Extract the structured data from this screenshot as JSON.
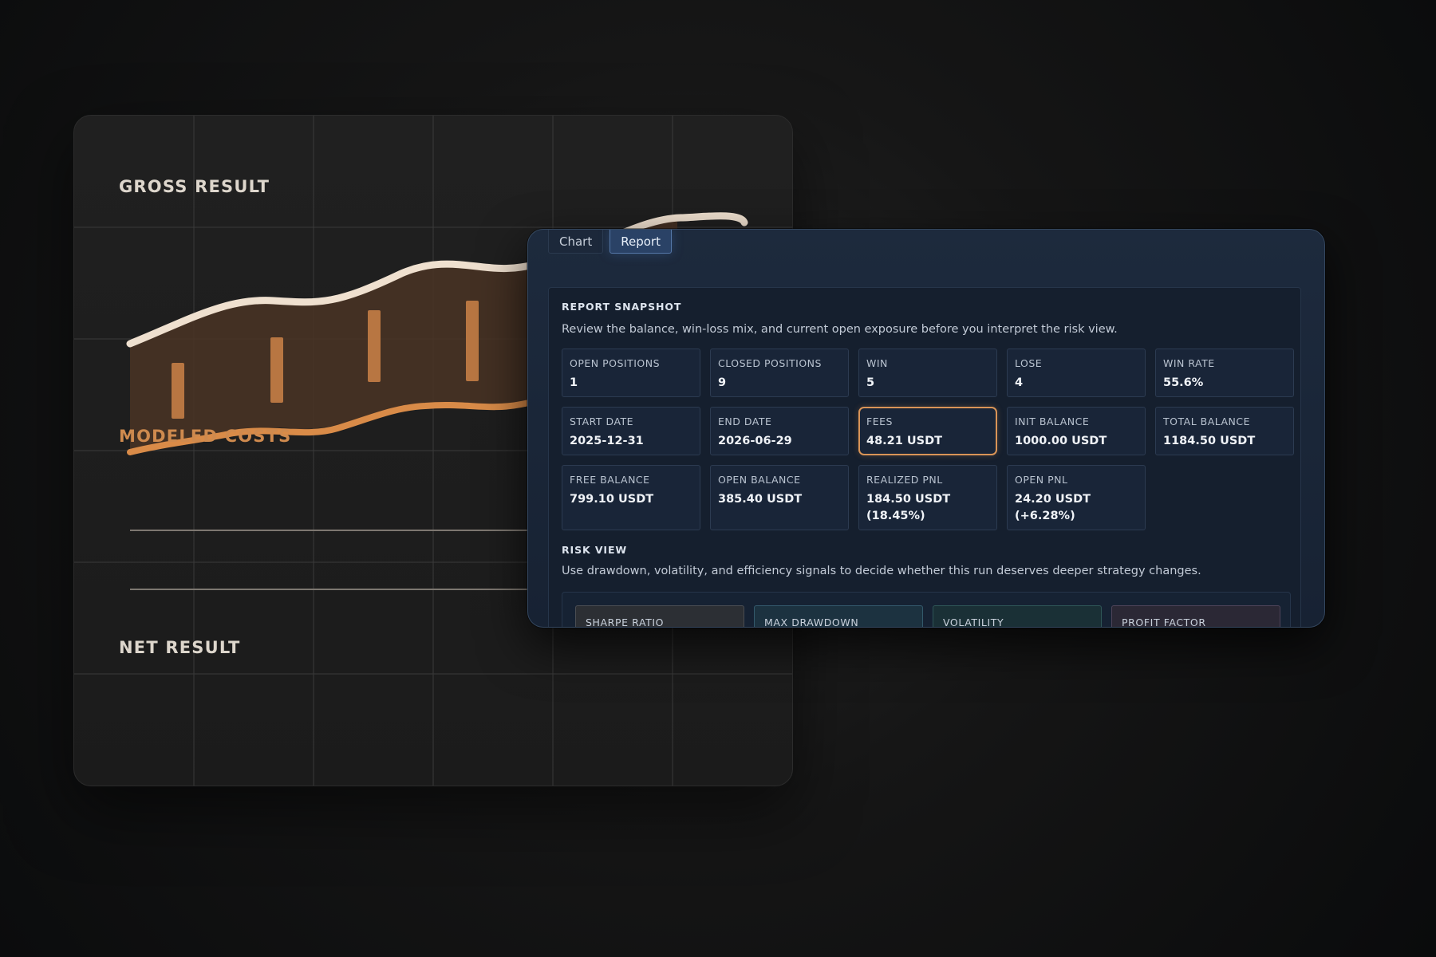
{
  "illustration": {
    "gross_label": "GROSS RESULT",
    "costs_label": "MODELED COSTS",
    "net_label": "NET RESULT",
    "colors": {
      "cream": "#efe0cf",
      "orange": "#d98b48",
      "band": "#4a3424",
      "bar": "#b87642"
    }
  },
  "tabs": [
    {
      "label": "Chart",
      "active": false
    },
    {
      "label": "Report",
      "active": true
    }
  ],
  "report": {
    "title": "REPORT SNAPSHOT",
    "description": "Review the balance, win-loss mix, and current open exposure before you interpret the risk view.",
    "stats": [
      {
        "label": "OPEN POSITIONS",
        "value": "1"
      },
      {
        "label": "CLOSED POSITIONS",
        "value": "9"
      },
      {
        "label": "WIN",
        "value": "5"
      },
      {
        "label": "LOSE",
        "value": "4"
      },
      {
        "label": "WIN RATE",
        "value": "55.6%"
      },
      {
        "label": "START DATE",
        "value": "2025-12-31"
      },
      {
        "label": "END DATE",
        "value": "2026-06-29"
      },
      {
        "label": "FEES",
        "value": "48.21 USDT"
      },
      {
        "label": "INIT BALANCE",
        "value": "1000.00 USDT"
      },
      {
        "label": "TOTAL BALANCE",
        "value": "1184.50 USDT"
      },
      {
        "label": "FREE BALANCE",
        "value": "799.10 USDT"
      },
      {
        "label": "OPEN BALANCE",
        "value": "385.40 USDT"
      },
      {
        "label": "REALIZED PNL",
        "value": "184.50 USDT (18.45%)"
      },
      {
        "label": "OPEN PNL",
        "value": "24.20 USDT (+6.28%)"
      }
    ],
    "highlight_color": "#d99457"
  },
  "risk": {
    "title": "RISK VIEW",
    "description": "Use drawdown, volatility, and efficiency signals to decide whether this run deserves deeper strategy changes.",
    "cards": [
      {
        "label": "SHARPE RATIO",
        "color": "#2e3136"
      },
      {
        "label": "MAX DRAWDOWN",
        "color": "#1d3340"
      },
      {
        "label": "VOLATILITY",
        "color": "#1b3136"
      },
      {
        "label": "PROFIT FACTOR",
        "color": "#2d2a36"
      }
    ]
  }
}
